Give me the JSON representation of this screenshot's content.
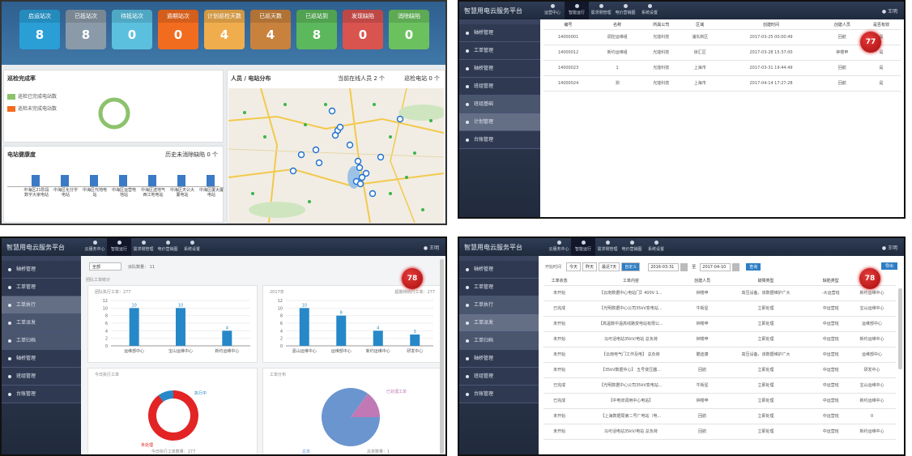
{
  "p1": {
    "stats": [
      {
        "label": "启运站次",
        "value": "8",
        "color": "#2a9fd6"
      },
      {
        "label": "已抵站次",
        "value": "8",
        "color": "#8a9aa8"
      },
      {
        "label": "待抵站次",
        "value": "0",
        "color": "#5bc0de"
      },
      {
        "label": "逾期站次",
        "value": "0",
        "color": "#f26c1f"
      },
      {
        "label": "计划巡检天数",
        "value": "4",
        "color": "#f0ad4e"
      },
      {
        "label": "已巡天数",
        "value": "4",
        "color": "#c9823d"
      },
      {
        "label": "已巡站到",
        "value": "8",
        "color": "#5cb85c"
      },
      {
        "label": "发现缺陷",
        "value": "0",
        "color": "#d9534f"
      },
      {
        "label": "消除缺陷",
        "value": "0",
        "color": "#6cc15f"
      }
    ],
    "completion": {
      "title": "巡检完成率",
      "legend": [
        "巡检已完成电站数",
        "巡检未完成电站数"
      ],
      "colors": [
        "#8cc26c",
        "#f26c1f"
      ]
    },
    "health": {
      "title": "电站健康度",
      "right": "历史未消除缺陷 0 个",
      "labels": [
        "中海区21阶段数字大家电站",
        "中海区化分字电站",
        "中海区代地电站",
        "中海区运营电地站",
        "中海区送地气西江地电站",
        "中海区天公大厦电站",
        "中海区厦大厦电站"
      ]
    },
    "map": {
      "title": "人员 / 电站分布",
      "online": "当前在线人员 2 个",
      "stations": "巡检电站 0 个"
    }
  },
  "p2": {
    "brand": "智慧用电云服务平台",
    "menu": [
      "运营中心",
      "智能运行",
      "需求侧管理",
      "电价营销图",
      "系统设置"
    ],
    "user": "王明",
    "side": [
      "轴桥管理",
      "工单管理",
      "轴桥管理",
      "班组管理",
      "班组基础",
      "计划管理",
      "台账管理"
    ],
    "columns": [
      "编号",
      "名称",
      "所属公司",
      "区域",
      "创建时间",
      "创建人员",
      "是否有效"
    ],
    "rows": [
      [
        "14000001",
        "调控运维组",
        "光能科技",
        "浦东新区",
        "2017-03-25 00:00:49",
        "回航",
        "是"
      ],
      [
        "14000012",
        "新约运维组",
        "光能科技",
        "徐汇区",
        "2017-03-28 15:37:00",
        "钟楼申",
        "是"
      ],
      [
        "14000023",
        "1",
        "光能科技",
        "上海市",
        "2017-03-31 19:44:49",
        "回航",
        "是"
      ],
      [
        "14000024",
        "测",
        "光能科技",
        "上海市",
        "2017-04-14 17:27:28",
        "回航",
        "是"
      ]
    ],
    "badge": "77"
  },
  "p3": {
    "brand": "智慧用电云服务平台",
    "menu": [
      "云服务中心",
      "智能运行",
      "需求侧管理",
      "电价营销图",
      "系统设置"
    ],
    "user": "王明",
    "side": [
      "轴桥管理",
      "工单管理",
      "工单执行",
      "工单派发",
      "工单归档",
      "轴桥管理",
      "班组管理",
      "台账管理"
    ],
    "select": "全部",
    "count_label": "派队数量：  11",
    "section": "团队工单统计",
    "badge": "78",
    "chart_data": [
      {
        "type": "bar",
        "title": "团队执行工单：277",
        "categories": [
          "运维部中心",
          "宝山运维中心",
          "新约运维中心"
        ],
        "values": [
          10,
          10,
          4
        ],
        "ylim": [
          0,
          12
        ],
        "yticks": [
          0,
          2,
          4,
          6,
          8,
          10,
          12
        ]
      },
      {
        "type": "bar",
        "title": "2017年",
        "right": "超期待执行工单：277",
        "categories": [
          "嘉山运维中心",
          "运维部中心",
          "新约运维中心",
          "研发中心"
        ],
        "values": [
          10,
          8,
          4,
          3
        ],
        "ylim": [
          0,
          12
        ],
        "yticks": [
          0,
          2,
          4,
          6,
          8,
          10,
          12
        ]
      },
      {
        "type": "pie",
        "title": "今日执行工单",
        "legend": [
          "未处理",
          "执行中"
        ],
        "values": [
          0.9,
          0.1
        ],
        "footer": "今日执行工单数量：277"
      },
      {
        "type": "pie",
        "title": "工单分布",
        "legend": [
          "总单",
          "已处理工单"
        ],
        "values": [
          0.85,
          0.15
        ],
        "footer": "总单数量：1"
      }
    ]
  },
  "p4": {
    "brand": "智慧用电云服务平台",
    "menu": [
      "云服务中心",
      "智能运行",
      "需求侧管理",
      "电价营销图",
      "系统设置"
    ],
    "user": "王明",
    "side": [
      "轴桥管理",
      "工单管理",
      "工单执行",
      "工单派发",
      "工单归档",
      "轴桥管理",
      "班组管理",
      "台账管理"
    ],
    "filter": {
      "label": "开始时间",
      "tabs": [
        "今天",
        "昨天",
        "最近7天",
        "自定义"
      ],
      "from": "2016-03-31",
      "to": "2017-04-10",
      "search": "查询",
      "export": "导出"
    },
    "columns": [
      "工单状态",
      "工单内容",
      "创建人员",
      "故障类型",
      "缺陷类型",
      "工单编号"
    ],
    "rows": [
      [
        "未开始",
        "【云南数据中心电站门】400V 1...",
        "钟楼申",
        "高压设备，该数据维护广大",
        "-大运营班",
        "新约运维中心"
      ],
      [
        "已完成",
        "【光明数据中心公司35kV变电站...",
        "牛街星",
        "立即处理",
        "中运营班",
        "宝山运维中心"
      ],
      [
        "未开始",
        "【高温数中温高线路变电站有限公...",
        "钟楼申",
        "立即处理",
        "中运营班",
        "运维部中心"
      ],
      [
        "未开始",
        "马可话电站35kV/电站 总负荷",
        "钟楼申",
        "立即处理",
        "中运营班",
        "新约运维中心"
      ],
      [
        "未开始",
        "【云南电气门工作及电】 总负荷",
        "酷迪康",
        "高压设备，该数据维护广大",
        "中运营班",
        "运维部中心"
      ],
      [
        "未开始",
        "【35kV数据中心】 五号变压器...",
        "回航",
        "立即处理",
        "中运营班",
        "研发中心"
      ],
      [
        "已完成",
        "【光明数据中心公司35kV变电站...",
        "牛街星",
        "立即处理",
        "中运营班",
        "宝山运维中心"
      ],
      [
        "已完成",
        "【中电双调用中心电站】",
        "钟楼申",
        "立即处理",
        "中运营班",
        "新约运维中心"
      ],
      [
        "未开始",
        "【上海数据局第二号厂电站（电...",
        "回航",
        "立即处理",
        "中运营班",
        "0"
      ],
      [
        "未开始",
        "马可话电站35kV/电站 总负荷",
        "回航",
        "立即处理",
        "中运营班",
        "新约运维中心"
      ]
    ],
    "badge": "78"
  }
}
